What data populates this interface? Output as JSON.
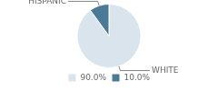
{
  "chart_data": {
    "type": "pie",
    "categories": [
      "WHITE",
      "HISPANIC"
    ],
    "values": [
      90.0,
      10.0
    ],
    "value_labels": [
      "90.0%",
      "10.0%"
    ],
    "colors": [
      "#d9e4ec",
      "#4a7a96"
    ],
    "legend": "bottom"
  }
}
